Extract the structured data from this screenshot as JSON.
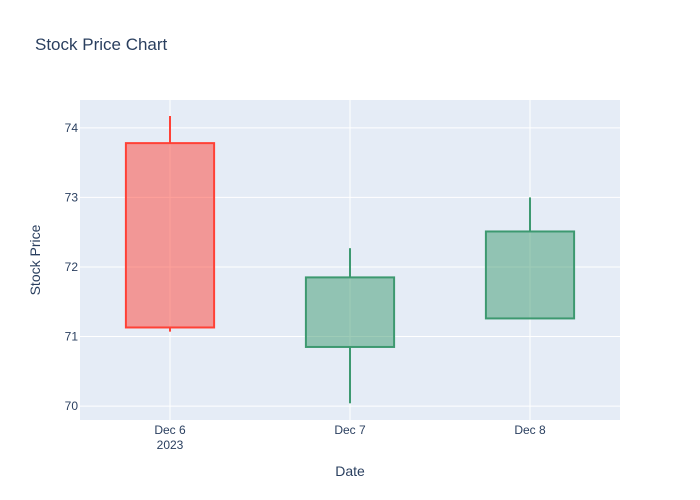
{
  "chart_data": {
    "type": "candlestick",
    "title": "Stock Price Chart",
    "xlabel": "Date",
    "ylabel": "Stock Price",
    "categories": [
      "Dec 6",
      "Dec 7",
      "Dec 8"
    ],
    "x_tick_sublabels": [
      "2023",
      "",
      ""
    ],
    "yticks": [
      70,
      71,
      72,
      73,
      74
    ],
    "ylim": [
      69.8,
      74.4
    ],
    "grid": true,
    "candles": [
      {
        "date": "Dec 6",
        "open": 73.78,
        "high": 74.17,
        "low": 71.07,
        "close": 71.13,
        "direction": "decreasing"
      },
      {
        "date": "Dec 7",
        "open": 70.85,
        "high": 72.27,
        "low": 70.04,
        "close": 71.85,
        "direction": "increasing"
      },
      {
        "date": "Dec 8",
        "open": 71.26,
        "high": 73.0,
        "low": 71.26,
        "close": 72.51,
        "direction": "increasing"
      }
    ],
    "colors": {
      "increasing_line": "#3d9970",
      "increasing_fill": "rgba(61,153,112,0.5)",
      "decreasing_line": "#ff4136",
      "decreasing_fill": "rgba(255,65,54,0.5)",
      "plot_background": "#e5ecf6",
      "grid": "#ffffff",
      "text": "#2a3f5f"
    }
  }
}
